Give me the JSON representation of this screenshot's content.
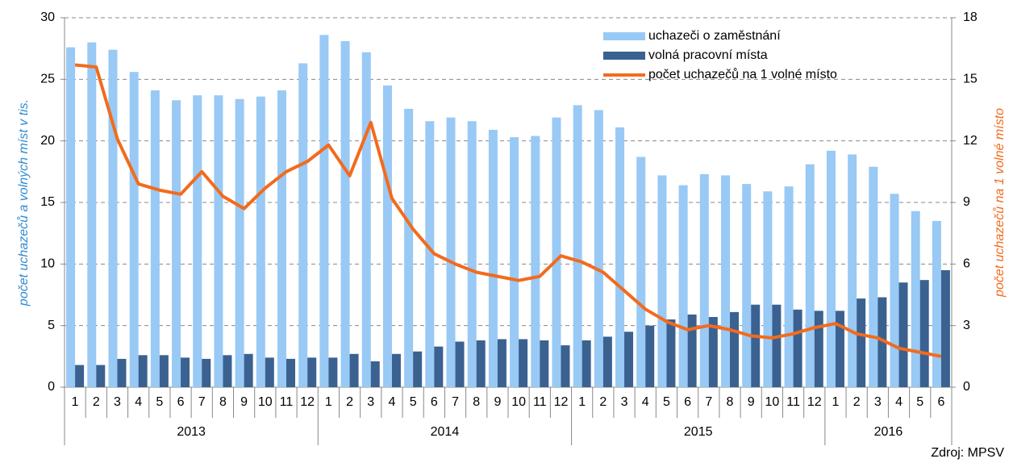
{
  "chart_data": {
    "type": "bar-line",
    "y_label": "počet uchazečů a volných míst v tis.",
    "y2_label": "počet uchazečů na 1 volné místo",
    "source": "Zdroj: MPSV",
    "categories": [
      "1",
      "2",
      "3",
      "4",
      "5",
      "6",
      "7",
      "8",
      "9",
      "10",
      "11",
      "12",
      "1",
      "2",
      "3",
      "4",
      "5",
      "6",
      "7",
      "8",
      "9",
      "10",
      "11",
      "12",
      "1",
      "2",
      "3",
      "4",
      "5",
      "6",
      "7",
      "8",
      "9",
      "10",
      "11",
      "12",
      "1",
      "2",
      "3",
      "4",
      "5",
      "6"
    ],
    "groups": [
      "2013",
      "2014",
      "2015",
      "2016"
    ],
    "series": [
      {
        "name": "uchazeči o zaměstnání",
        "type": "bar",
        "color": "#99c9f5",
        "values": [
          27.6,
          28.0,
          27.4,
          25.6,
          24.1,
          23.3,
          23.7,
          23.7,
          23.4,
          23.6,
          24.1,
          26.3,
          28.6,
          28.1,
          27.2,
          24.5,
          22.6,
          21.6,
          21.9,
          21.6,
          20.9,
          20.3,
          20.4,
          21.9,
          22.9,
          22.5,
          21.1,
          18.7,
          17.2,
          16.4,
          17.3,
          17.2,
          16.5,
          15.9,
          16.3,
          18.1,
          19.2,
          18.9,
          17.9,
          15.7,
          14.3,
          13.5
        ]
      },
      {
        "name": "volná pracovní místa",
        "type": "bar",
        "color": "#3a6190",
        "values": [
          1.8,
          1.8,
          2.3,
          2.6,
          2.6,
          2.4,
          2.3,
          2.6,
          2.7,
          2.4,
          2.3,
          2.4,
          2.4,
          2.7,
          2.1,
          2.7,
          2.9,
          3.3,
          3.7,
          3.8,
          3.9,
          3.9,
          3.8,
          3.4,
          3.8,
          4.1,
          4.5,
          5.0,
          5.5,
          5.9,
          5.7,
          6.1,
          6.7,
          6.7,
          6.3,
          6.2,
          6.2,
          7.2,
          7.3,
          8.5,
          8.7,
          9.5
        ]
      },
      {
        "name": "počet uchazečů na 1 volné místo",
        "type": "line",
        "axis": "y2",
        "color": "#f26b1d",
        "values": [
          15.7,
          15.6,
          12.1,
          9.9,
          9.6,
          9.4,
          10.5,
          9.3,
          8.7,
          9.7,
          10.5,
          11.0,
          11.8,
          10.3,
          12.9,
          9.2,
          7.7,
          6.5,
          6.0,
          5.6,
          5.4,
          5.2,
          5.4,
          6.4,
          6.1,
          5.6,
          4.7,
          3.8,
          3.2,
          2.8,
          3.0,
          2.8,
          2.5,
          2.4,
          2.6,
          2.9,
          3.1,
          2.6,
          2.4,
          1.9,
          1.7,
          1.5
        ]
      }
    ],
    "ylim": [
      0,
      30
    ],
    "yticks": [
      0,
      5,
      10,
      15,
      20,
      25,
      30
    ],
    "y2lim": [
      0,
      18
    ],
    "y2ticks": [
      0,
      3,
      6,
      9,
      12,
      15,
      18
    ],
    "grid": true
  }
}
